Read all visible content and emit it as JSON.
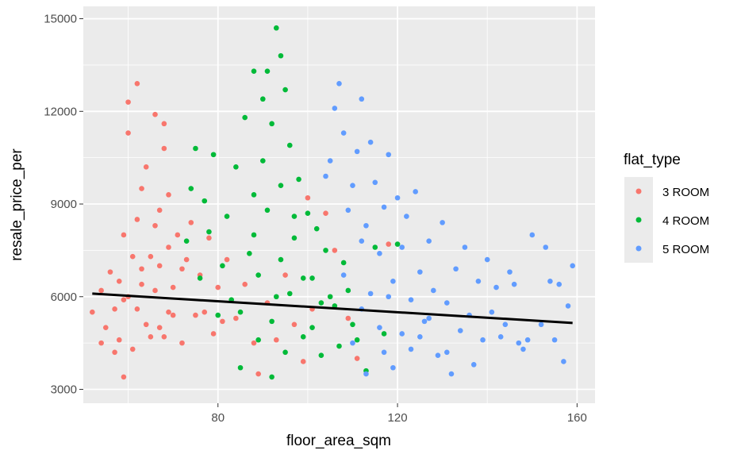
{
  "chart_data": {
    "type": "scatter",
    "title": "",
    "xlabel": "floor_area_sqm",
    "ylabel": "resale_price_per",
    "xlim": [
      50,
      164
    ],
    "ylim": [
      2550,
      15400
    ],
    "x_ticks": [
      80,
      120,
      160
    ],
    "y_ticks": [
      3000,
      6000,
      9000,
      12000,
      15000
    ],
    "x_tick_labels": [
      "80",
      "120",
      "160"
    ],
    "y_tick_labels": [
      "3000",
      "6000",
      "9000",
      "12000",
      "15000"
    ],
    "grid": true,
    "legend": {
      "title": "flat_type",
      "position": "right",
      "entries": [
        {
          "label": "3 ROOM",
          "color": "#F8766D"
        },
        {
          "label": "4 ROOM",
          "color": "#00BA38"
        },
        {
          "label": "5 ROOM",
          "color": "#619CFF"
        }
      ]
    },
    "trend_line": {
      "x": [
        52,
        159
      ],
      "y": [
        6100,
        5150
      ],
      "color": "#000000"
    },
    "series": [
      {
        "name": "3 ROOM",
        "color": "#F8766D",
        "points": [
          [
            52,
            5500
          ],
          [
            54,
            6200
          ],
          [
            55,
            5000
          ],
          [
            56,
            6800
          ],
          [
            57,
            5600
          ],
          [
            58,
            4600
          ],
          [
            59,
            3400
          ],
          [
            59,
            8000
          ],
          [
            59,
            5900
          ],
          [
            60,
            6000
          ],
          [
            60,
            11300
          ],
          [
            60,
            12300
          ],
          [
            61,
            7300
          ],
          [
            61,
            4300
          ],
          [
            62,
            12900
          ],
          [
            62,
            8500
          ],
          [
            63,
            6400
          ],
          [
            63,
            9500
          ],
          [
            64,
            5100
          ],
          [
            64,
            10200
          ],
          [
            65,
            7300
          ],
          [
            65,
            4700
          ],
          [
            66,
            11900
          ],
          [
            66,
            6200
          ],
          [
            67,
            8800
          ],
          [
            67,
            5000
          ],
          [
            68,
            11600
          ],
          [
            68,
            10800
          ],
          [
            68,
            4700
          ],
          [
            69,
            9300
          ],
          [
            69,
            7600
          ],
          [
            70,
            6300
          ],
          [
            70,
            5400
          ],
          [
            71,
            8000
          ],
          [
            72,
            4500
          ],
          [
            72,
            6900
          ],
          [
            73,
            7200
          ],
          [
            74,
            8400
          ],
          [
            75,
            5400
          ],
          [
            76,
            6700
          ],
          [
            77,
            5500
          ],
          [
            78,
            7900
          ],
          [
            79,
            4800
          ],
          [
            80,
            6300
          ],
          [
            81,
            5200
          ],
          [
            82,
            7200
          ],
          [
            84,
            5300
          ],
          [
            86,
            6400
          ],
          [
            88,
            4500
          ],
          [
            89,
            3500
          ],
          [
            91,
            5800
          ],
          [
            93,
            4600
          ],
          [
            95,
            6700
          ],
          [
            97,
            5100
          ],
          [
            99,
            3900
          ],
          [
            100,
            9200
          ],
          [
            101,
            5600
          ],
          [
            104,
            8700
          ],
          [
            106,
            7500
          ],
          [
            109,
            5300
          ],
          [
            111,
            4000
          ],
          [
            118,
            7700
          ],
          [
            62,
            5600
          ],
          [
            66,
            8300
          ],
          [
            69,
            5500
          ],
          [
            63,
            6900
          ],
          [
            67,
            7000
          ],
          [
            58,
            6500
          ],
          [
            57,
            4200
          ],
          [
            54,
            4500
          ]
        ]
      },
      {
        "name": "4 ROOM",
        "color": "#00BA38",
        "points": [
          [
            73,
            7800
          ],
          [
            74,
            9500
          ],
          [
            75,
            10800
          ],
          [
            76,
            6600
          ],
          [
            77,
            9100
          ],
          [
            78,
            8100
          ],
          [
            79,
            10600
          ],
          [
            80,
            5400
          ],
          [
            81,
            7000
          ],
          [
            82,
            8600
          ],
          [
            83,
            5900
          ],
          [
            84,
            10200
          ],
          [
            85,
            3700
          ],
          [
            86,
            11800
          ],
          [
            87,
            7400
          ],
          [
            88,
            9300
          ],
          [
            88,
            13300
          ],
          [
            89,
            4600
          ],
          [
            90,
            10400
          ],
          [
            90,
            12400
          ],
          [
            91,
            8800
          ],
          [
            91,
            13300
          ],
          [
            92,
            11600
          ],
          [
            92,
            3400
          ],
          [
            93,
            14700
          ],
          [
            93,
            6000
          ],
          [
            94,
            9600
          ],
          [
            94,
            13800
          ],
          [
            95,
            12700
          ],
          [
            95,
            4200
          ],
          [
            96,
            10900
          ],
          [
            97,
            7900
          ],
          [
            98,
            9800
          ],
          [
            99,
            6600
          ],
          [
            100,
            8700
          ],
          [
            101,
            5000
          ],
          [
            102,
            8200
          ],
          [
            103,
            4100
          ],
          [
            104,
            7500
          ],
          [
            105,
            6000
          ],
          [
            106,
            5700
          ],
          [
            107,
            4400
          ],
          [
            108,
            7100
          ],
          [
            109,
            6200
          ],
          [
            110,
            5100
          ],
          [
            111,
            4600
          ],
          [
            113,
            3600
          ],
          [
            115,
            7600
          ],
          [
            117,
            4800
          ],
          [
            120,
            7700
          ],
          [
            85,
            5500
          ],
          [
            89,
            6700
          ],
          [
            92,
            5200
          ],
          [
            96,
            6100
          ],
          [
            99,
            4700
          ],
          [
            103,
            5800
          ],
          [
            88,
            8000
          ],
          [
            94,
            7200
          ],
          [
            97,
            8600
          ],
          [
            101,
            6600
          ]
        ]
      },
      {
        "name": "5 ROOM",
        "color": "#619CFF",
        "points": [
          [
            104,
            9900
          ],
          [
            105,
            10400
          ],
          [
            106,
            12100
          ],
          [
            107,
            12900
          ],
          [
            108,
            11300
          ],
          [
            108,
            6700
          ],
          [
            109,
            8800
          ],
          [
            110,
            9600
          ],
          [
            110,
            4500
          ],
          [
            111,
            10700
          ],
          [
            112,
            12400
          ],
          [
            112,
            7800
          ],
          [
            113,
            8300
          ],
          [
            113,
            3500
          ],
          [
            114,
            11000
          ],
          [
            114,
            6100
          ],
          [
            115,
            9700
          ],
          [
            116,
            7400
          ],
          [
            117,
            4200
          ],
          [
            117,
            8900
          ],
          [
            118,
            10600
          ],
          [
            119,
            6500
          ],
          [
            119,
            3700
          ],
          [
            120,
            9200
          ],
          [
            121,
            7600
          ],
          [
            121,
            4800
          ],
          [
            122,
            8600
          ],
          [
            123,
            5900
          ],
          [
            124,
            9400
          ],
          [
            125,
            6800
          ],
          [
            126,
            5200
          ],
          [
            127,
            7800
          ],
          [
            128,
            6200
          ],
          [
            129,
            4100
          ],
          [
            130,
            8400
          ],
          [
            131,
            5800
          ],
          [
            132,
            3500
          ],
          [
            133,
            6900
          ],
          [
            134,
            4900
          ],
          [
            135,
            7600
          ],
          [
            136,
            5400
          ],
          [
            137,
            3800
          ],
          [
            138,
            6500
          ],
          [
            139,
            4600
          ],
          [
            140,
            7200
          ],
          [
            141,
            5500
          ],
          [
            142,
            6300
          ],
          [
            143,
            4700
          ],
          [
            144,
            5100
          ],
          [
            146,
            6400
          ],
          [
            148,
            4300
          ],
          [
            149,
            4600
          ],
          [
            150,
            8000
          ],
          [
            152,
            5100
          ],
          [
            154,
            6500
          ],
          [
            155,
            4600
          ],
          [
            156,
            6400
          ],
          [
            157,
            3900
          ],
          [
            158,
            5700
          ],
          [
            159,
            7000
          ],
          [
            153,
            7600
          ],
          [
            147,
            4500
          ],
          [
            145,
            6800
          ],
          [
            112,
            5600
          ],
          [
            116,
            5000
          ],
          [
            123,
            4300
          ],
          [
            127,
            5300
          ],
          [
            131,
            4200
          ],
          [
            118,
            6000
          ],
          [
            125,
            4700
          ]
        ]
      }
    ]
  }
}
